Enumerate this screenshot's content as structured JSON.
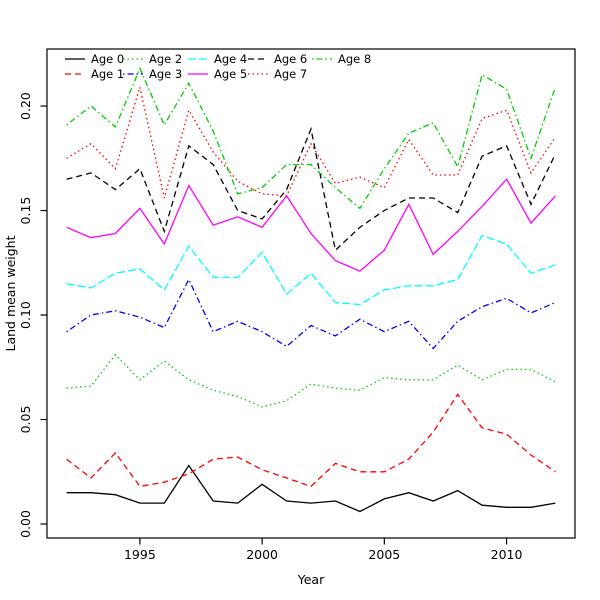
{
  "chart_data": {
    "type": "line",
    "title": "",
    "xlabel": "Year",
    "ylabel": "Land mean weight",
    "grid": false,
    "legend_position": "top-left, 5 columns x 2 rows, no box",
    "xlim": [
      1991.2,
      2012.8
    ],
    "ylim": [
      -0.0067,
      0.2273
    ],
    "x_ticks": [
      1995,
      2000,
      2005,
      2010
    ],
    "y_ticks": [
      "0.00",
      "0.05",
      "0.10",
      "0.15",
      "0.20"
    ],
    "x": [
      1992,
      1993,
      1994,
      1995,
      1996,
      1997,
      1998,
      1999,
      2000,
      2001,
      2002,
      2003,
      2004,
      2005,
      2006,
      2007,
      2008,
      2009,
      2010,
      2011,
      2012
    ],
    "series": [
      {
        "name": "Age 0",
        "color": "#000000",
        "linestyle": "solid",
        "values": [
          0.015,
          0.015,
          0.014,
          0.01,
          0.01,
          0.028,
          0.011,
          0.01,
          0.019,
          0.011,
          0.01,
          0.011,
          0.006,
          0.012,
          0.015,
          0.011,
          0.016,
          0.009,
          0.008,
          0.008,
          0.01
        ]
      },
      {
        "name": "Age 1",
        "color": "#ff0000",
        "linestyle": "dashed",
        "values": [
          0.031,
          0.022,
          0.034,
          0.018,
          0.02,
          0.024,
          0.031,
          0.032,
          0.026,
          0.022,
          0.018,
          0.029,
          0.025,
          0.025,
          0.031,
          0.044,
          0.062,
          0.046,
          0.043,
          0.033,
          0.025
        ]
      },
      {
        "name": "Age 2",
        "color": "#00cd00",
        "linestyle": "dotted",
        "values": [
          0.065,
          0.066,
          0.081,
          0.069,
          0.078,
          0.069,
          0.064,
          0.061,
          0.056,
          0.059,
          0.067,
          0.065,
          0.064,
          0.07,
          0.069,
          0.069,
          0.076,
          0.069,
          0.074,
          0.074,
          0.068
        ]
      },
      {
        "name": "Age 3",
        "color": "#0000ff",
        "linestyle": "dotdash",
        "values": [
          0.092,
          0.1,
          0.102,
          0.099,
          0.094,
          0.117,
          0.092,
          0.097,
          0.092,
          0.085,
          0.095,
          0.09,
          0.098,
          0.092,
          0.097,
          0.084,
          0.097,
          0.104,
          0.108,
          0.101,
          0.106
        ]
      },
      {
        "name": "Age 4",
        "color": "#00ffff",
        "linestyle": "longdash",
        "values": [
          0.115,
          0.113,
          0.12,
          0.122,
          0.112,
          0.133,
          0.118,
          0.118,
          0.13,
          0.11,
          0.12,
          0.106,
          0.105,
          0.112,
          0.114,
          0.114,
          0.117,
          0.138,
          0.134,
          0.12,
          0.124
        ]
      },
      {
        "name": "Age 5",
        "color": "#ff00ff",
        "linestyle": "solid",
        "values": [
          0.142,
          0.137,
          0.139,
          0.151,
          0.134,
          0.162,
          0.143,
          0.147,
          0.142,
          0.157,
          0.139,
          0.126,
          0.121,
          0.131,
          0.153,
          0.129,
          0.14,
          0.152,
          0.165,
          0.144,
          0.157
        ]
      },
      {
        "name": "Age 6",
        "color": "#000000",
        "linestyle": "dashed",
        "values": [
          0.165,
          0.168,
          0.16,
          0.17,
          0.14,
          0.181,
          0.172,
          0.15,
          0.146,
          0.16,
          0.189,
          0.131,
          0.142,
          0.15,
          0.156,
          0.156,
          0.149,
          0.176,
          0.181,
          0.153,
          0.177
        ]
      },
      {
        "name": "Age 7",
        "color": "#ff0000",
        "linestyle": "dotted",
        "values": [
          0.175,
          0.182,
          0.17,
          0.209,
          0.156,
          0.198,
          0.178,
          0.164,
          0.158,
          0.157,
          0.182,
          0.163,
          0.166,
          0.161,
          0.184,
          0.167,
          0.167,
          0.194,
          0.198,
          0.168,
          0.185
        ]
      },
      {
        "name": "Age 8",
        "color": "#00cd00",
        "linestyle": "dotdash",
        "values": [
          0.191,
          0.2,
          0.19,
          0.218,
          0.191,
          0.211,
          0.188,
          0.158,
          0.161,
          0.172,
          0.172,
          0.161,
          0.151,
          0.17,
          0.187,
          0.192,
          0.171,
          0.215,
          0.208,
          0.175,
          0.209
        ]
      }
    ]
  }
}
